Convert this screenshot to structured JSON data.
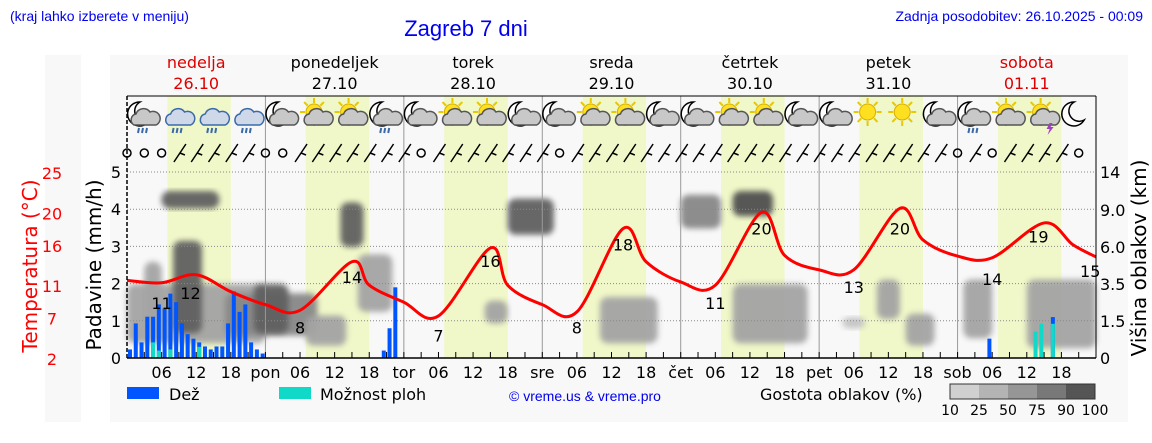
{
  "header": {
    "menu_hint": "(kraj lahko izberete v meniju)",
    "title": "Zagreb 7 dni",
    "updated": "Zadnja posodobitev: 26.10.2025 - 00:09"
  },
  "colors": {
    "rain": "#0055ff",
    "showers": "#11d9c8",
    "temperature": "#ff0000",
    "daylight": "#f0f7c8",
    "weekend": "#dd0000",
    "title": "#0000ee"
  },
  "days": [
    {
      "name": "nedelja",
      "date": "26.10",
      "abbr": "",
      "weekend": true
    },
    {
      "name": "ponedeljek",
      "date": "27.10",
      "abbr": "pon",
      "weekend": false
    },
    {
      "name": "torek",
      "date": "28.10",
      "abbr": "tor",
      "weekend": false
    },
    {
      "name": "sreda",
      "date": "29.10",
      "abbr": "sre",
      "weekend": false
    },
    {
      "name": "četrtek",
      "date": "30.10",
      "abbr": "čet",
      "weekend": false
    },
    {
      "name": "petek",
      "date": "31.10",
      "abbr": "pet",
      "weekend": false
    },
    {
      "name": "sobota",
      "date": "01.11",
      "abbr": "sob",
      "weekend": true
    }
  ],
  "icons": [
    "moon-cloud-rain",
    "cloud-rain",
    "cloud-rain",
    "cloud-rain",
    "moon-cloud",
    "sun-cloud",
    "sun-cloud",
    "moon-cloud-rain",
    "moon-cloud",
    "sun-cloud",
    "sun-cloud",
    "moon-cloud",
    "moon-cloud",
    "sun-cloud",
    "sun-cloud",
    "moon-cloud",
    "moon-cloud",
    "sun-cloud",
    "sun-cloud",
    "moon-cloud",
    "moon-cloud",
    "sun",
    "sun",
    "moon-cloud",
    "moon-cloud-rain",
    "sun-cloud",
    "sun-cloud-thunder",
    "moon"
  ],
  "wind": [
    "calm",
    "calm",
    "calm",
    "barb",
    "barb",
    "barb",
    "barb",
    "barb",
    "calm",
    "calm",
    "barb",
    "barb",
    "barb",
    "barb",
    "barb",
    "barb",
    "barb",
    "calm",
    "barb",
    "barb",
    "barb",
    "barb",
    "barb",
    "barb",
    "barb",
    "calm",
    "barb",
    "barb",
    "barb",
    "barb",
    "barb",
    "barb",
    "barb",
    "barb",
    "barb",
    "barb",
    "barb",
    "barb",
    "barb",
    "barb",
    "barb",
    "barb",
    "barb",
    "barb",
    "barb",
    "barb",
    "barb",
    "barb",
    "calm",
    "barb",
    "calm",
    "barb",
    "barb",
    "barb",
    "barb",
    "calm"
  ],
  "chart_data": {
    "type": "meteogram",
    "x_unit": "hours from 26.10 00:00",
    "xticks_hours": [
      "06",
      "12",
      "18"
    ],
    "left_axis_temp": {
      "label": "Temperatura (°C)",
      "ticks": [
        2,
        7,
        11,
        16,
        20,
        25
      ]
    },
    "left_axis_rain": {
      "label": "Padavine (mm/h)",
      "ticks": [
        0,
        1,
        2,
        3,
        4,
        5
      ],
      "ylim": [
        0,
        5
      ]
    },
    "right_axis": {
      "label": "Višina oblakov (km)",
      "ticks": [
        0,
        1.5,
        3.5,
        6.0,
        9.0,
        14
      ]
    },
    "daylight": [
      [
        7,
        18
      ],
      [
        31,
        42
      ],
      [
        55,
        66
      ],
      [
        79,
        90
      ],
      [
        103,
        114
      ],
      [
        127,
        138
      ],
      [
        151,
        162
      ]
    ],
    "temperature": {
      "hours": [
        0,
        6,
        12,
        18,
        24,
        30,
        39,
        42,
        48,
        54,
        63,
        66,
        72,
        78,
        86,
        90,
        96,
        102,
        110,
        114,
        120,
        126,
        134,
        138,
        144,
        150,
        159,
        164,
        168
      ],
      "values": [
        11.6,
        11.3,
        12.3,
        10.2,
        8.6,
        7.9,
        13.9,
        11,
        8.9,
        7.2,
        15.6,
        11,
        8.6,
        7.7,
        18,
        13.9,
        11.4,
        11,
        20,
        14.7,
        12.9,
        12.9,
        20.5,
        16.6,
        14.6,
        14.4,
        18.7,
        16,
        14.5
      ]
    },
    "temp_labels": [
      {
        "hour": 6,
        "value": "11"
      },
      {
        "hour": 11,
        "value": "12"
      },
      {
        "hour": 30,
        "value": "8"
      },
      {
        "hour": 39,
        "value": "14"
      },
      {
        "hour": 54,
        "value": "7"
      },
      {
        "hour": 63,
        "value": "16"
      },
      {
        "hour": 78,
        "value": "8"
      },
      {
        "hour": 86,
        "value": "18"
      },
      {
        "hour": 102,
        "value": "11"
      },
      {
        "hour": 110,
        "value": "20"
      },
      {
        "hour": 126,
        "value": "13"
      },
      {
        "hour": 134,
        "value": "20"
      },
      {
        "hour": 150,
        "value": "14"
      },
      {
        "hour": 158,
        "value": "19"
      },
      {
        "hour": 167,
        "value": "15"
      }
    ],
    "rain": {
      "hours": [
        0,
        1,
        2,
        3,
        4,
        5,
        6,
        7,
        8,
        9,
        10,
        11,
        12,
        13,
        14,
        15,
        16,
        17,
        18,
        19,
        20,
        21,
        22,
        23,
        44,
        45,
        46,
        149,
        160
      ],
      "values": [
        0.23,
        0.93,
        0.42,
        1.11,
        1.11,
        1.44,
        1.33,
        1.73,
        1.5,
        0.93,
        0.64,
        0.52,
        0.42,
        0.31,
        0.23,
        0.31,
        0.31,
        0.93,
        1.79,
        1.24,
        1.44,
        0.42,
        0.23,
        0.12,
        0.2,
        0.8,
        1.9,
        0.52,
        1.1
      ]
    },
    "showers": {
      "hours": [
        4,
        5,
        7,
        12,
        157,
        158,
        160
      ],
      "values": [
        0.42,
        0.2,
        0.23,
        0.3,
        0.71,
        0.92,
        0.92
      ]
    },
    "clouds": [
      {
        "h": [
          0,
          24
        ],
        "km": [
          0.6,
          3.5
        ],
        "density": 50
      },
      {
        "h": [
          3,
          6
        ],
        "km": [
          1.0,
          5.0
        ],
        "density": 50
      },
      {
        "h": [
          8,
          13
        ],
        "km": [
          1.0,
          6.5
        ],
        "density": 90
      },
      {
        "h": [
          6,
          16
        ],
        "km": [
          9.2,
          11.5
        ],
        "density": 90
      },
      {
        "h": [
          17,
          33
        ],
        "km": [
          0.9,
          3.0
        ],
        "density": 75
      },
      {
        "h": [
          22,
          28
        ],
        "km": [
          1.0,
          3.5
        ],
        "density": 90
      },
      {
        "h": [
          31,
          38
        ],
        "km": [
          0.5,
          1.8
        ],
        "density": 50
      },
      {
        "h": [
          37,
          41
        ],
        "km": [
          6.0,
          10.0
        ],
        "density": 90
      },
      {
        "h": [
          40,
          46
        ],
        "km": [
          2.0,
          5.5
        ],
        "density": 50
      },
      {
        "h": [
          66,
          74
        ],
        "km": [
          7.0,
          10.5
        ],
        "density": 90
      },
      {
        "h": [
          62,
          66
        ],
        "km": [
          1.4,
          2.6
        ],
        "density": 50
      },
      {
        "h": [
          82,
          92
        ],
        "km": [
          0.6,
          2.8
        ],
        "density": 50
      },
      {
        "h": [
          96,
          103
        ],
        "km": [
          7.5,
          11.0
        ],
        "density": 75
      },
      {
        "h": [
          105,
          112
        ],
        "km": [
          8.5,
          11.5
        ],
        "density": 100
      },
      {
        "h": [
          105,
          118
        ],
        "km": [
          0.6,
          3.5
        ],
        "density": 50
      },
      {
        "h": [
          124,
          128
        ],
        "km": [
          1.2,
          1.7
        ],
        "density": 25
      },
      {
        "h": [
          130,
          134
        ],
        "km": [
          1.6,
          3.8
        ],
        "density": 50
      },
      {
        "h": [
          135,
          140
        ],
        "km": [
          0.5,
          1.9
        ],
        "density": 50
      },
      {
        "h": [
          145,
          150
        ],
        "km": [
          0.8,
          3.8
        ],
        "density": 50
      },
      {
        "h": [
          156,
          168
        ],
        "km": [
          0.4,
          3.8
        ],
        "density": 50
      }
    ],
    "density_scale": {
      "label": "Gostota oblakov (%)",
      "ticks": [
        "10",
        "25",
        "50",
        "75",
        "90",
        "100"
      ],
      "colors": [
        "#d0d0d0",
        "#b4b4b4",
        "#969696",
        "#787878",
        "#555555"
      ]
    }
  },
  "legend": {
    "rain": "Dež",
    "showers": "Možnost ploh",
    "copyright": "© vreme.us & vreme.pro"
  }
}
